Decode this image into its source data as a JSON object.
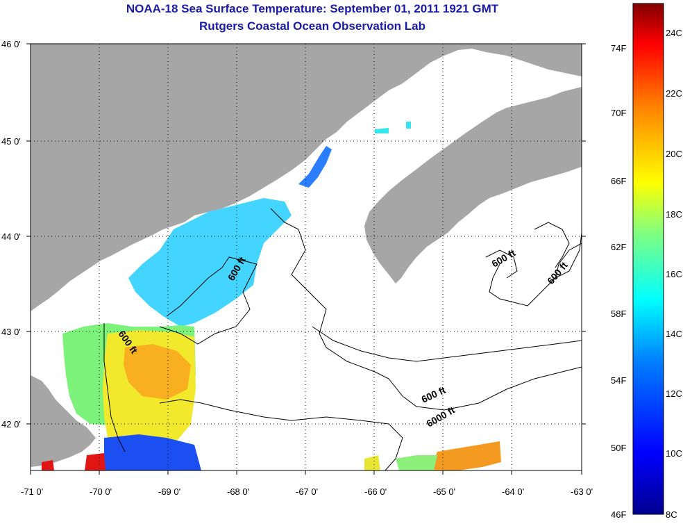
{
  "title": "NOAA-18 Sea Surface Temperature:  September 01, 2011 1921 GMT",
  "subtitle": "Rutgers Coastal Ocean Observation Lab",
  "lat_ticks": [
    "46 0'",
    "45 0'",
    "44 0'",
    "43 0'",
    "42 0'"
  ],
  "lon_ticks": [
    "-71 0'",
    "-70 0'",
    "-69 0'",
    "-68 0'",
    "-67 0'",
    "-66 0'",
    "-65 0'",
    "-64 0'",
    "-63 0'"
  ],
  "contour_labels": [
    "600 ft",
    "600 ft",
    "600 ft",
    "600 ft",
    "600 ft",
    "6000 ft"
  ],
  "colorbar": {
    "fahrenheit_labels": [
      "74F",
      "70F",
      "66F",
      "62F",
      "58F",
      "54F",
      "50F",
      "46F"
    ],
    "celsius_labels": [
      "24C",
      "22C",
      "20C",
      "18C",
      "16C",
      "14C",
      "12C",
      "10C",
      "8C"
    ]
  },
  "colors": {
    "land": "#a6a6a6",
    "title": "#1a1aaa",
    "grid": "#000000"
  }
}
